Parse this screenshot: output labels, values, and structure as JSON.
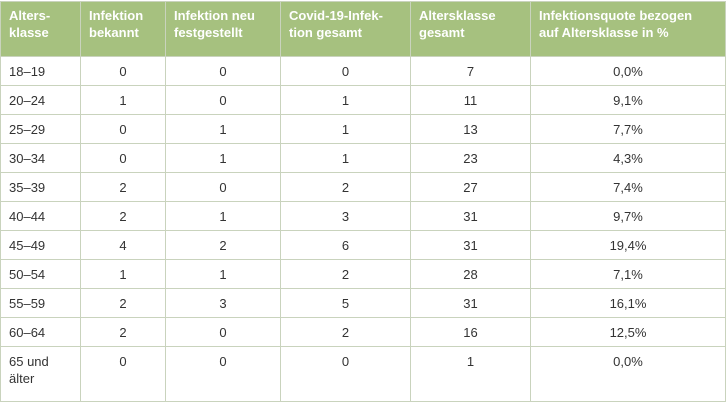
{
  "table": {
    "header": [
      "Alters-\nklasse",
      "Infektion\nbekannt",
      "Infektion neu\nfestgestellt",
      "Covid-19-Infek-\ntion gesamt",
      "Altersklasse\ngesamt",
      "Infektionsquote bezogen\nauf Altersklasse in %"
    ],
    "rows": [
      [
        "18–19",
        "0",
        "0",
        "0",
        "7",
        "0,0%"
      ],
      [
        "20–24",
        "1",
        "0",
        "1",
        "11",
        "9,1%"
      ],
      [
        "25–29",
        "0",
        "1",
        "1",
        "13",
        "7,7%"
      ],
      [
        "30–34",
        "0",
        "1",
        "1",
        "23",
        "4,3%"
      ],
      [
        "35–39",
        "2",
        "0",
        "2",
        "27",
        "7,4%"
      ],
      [
        "40–44",
        "2",
        "1",
        "3",
        "31",
        "9,7%"
      ],
      [
        "45–49",
        "4",
        "2",
        "6",
        "31",
        "19,4%"
      ],
      [
        "50–54",
        "1",
        "1",
        "2",
        "28",
        "7,1%"
      ],
      [
        "55–59",
        "2",
        "3",
        "5",
        "31",
        "16,1%"
      ],
      [
        "60–64",
        "2",
        "0",
        "2",
        "16",
        "12,5%"
      ],
      [
        "65 und\nälter",
        "0",
        "0",
        "0",
        "1",
        "0,0%"
      ]
    ]
  }
}
